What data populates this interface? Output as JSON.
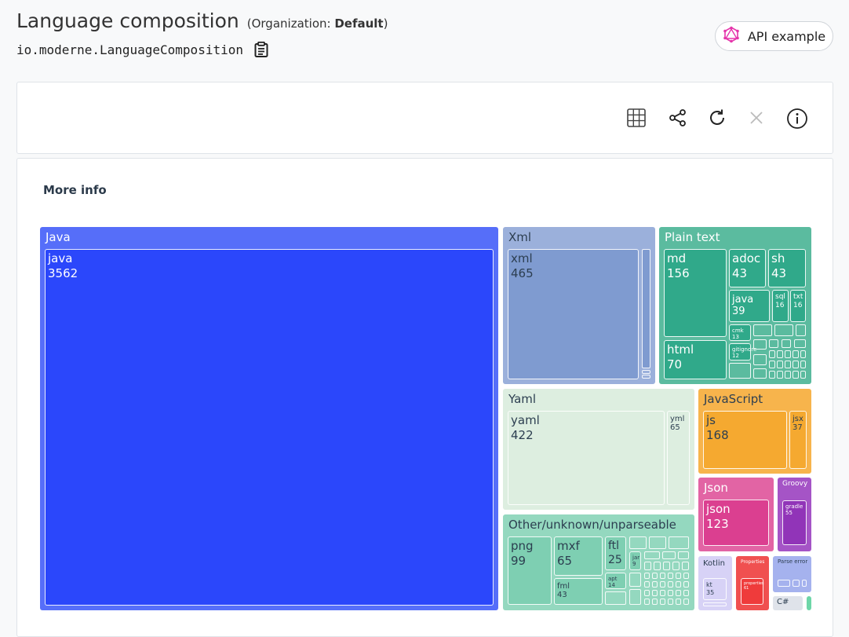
{
  "header": {
    "title": "Language composition",
    "org_prefix": "(Organization: ",
    "org_name": "Default",
    "org_suffix": ")",
    "recipe_id": "io.moderne.LanguageComposition",
    "api_button_label": "API example"
  },
  "toolbar": {
    "icons": [
      "table-icon",
      "share-icon",
      "refresh-icon",
      "close-icon",
      "info-icon"
    ]
  },
  "section": {
    "more_info_label": "More info"
  },
  "colors": {
    "java": "#2b47fb",
    "java_header": "#566ef9",
    "xml": "#7f9bd0",
    "xml_header": "#9bb0db",
    "plain": "#30a98a",
    "plain_header": "#5bbb9f",
    "yaml": "#ddeee0",
    "javascript": "#f5a930",
    "javascript_header": "#f7b44c",
    "json": "#db3f90",
    "json_header": "#e264a4",
    "groovy": "#9134b8",
    "groovy_header": "#a554c6",
    "other": "#7ecfb2",
    "other_header": "#94d8bf",
    "kotlin": "#d7d2f6",
    "properties": "#ef3b3b",
    "parse_error": "#a5b2ee"
  },
  "chart_data": {
    "type": "treemap",
    "groups": [
      {
        "name": "Java",
        "children": [
          {
            "name": "java",
            "value": 3562
          }
        ]
      },
      {
        "name": "Xml",
        "children": [
          {
            "name": "xml",
            "value": 465
          }
        ]
      },
      {
        "name": "Plain text",
        "children": [
          {
            "name": "md",
            "value": 156
          },
          {
            "name": "adoc",
            "value": 43
          },
          {
            "name": "sh",
            "value": 43
          },
          {
            "name": "java",
            "value": 39
          },
          {
            "name": "sql",
            "value": 16
          },
          {
            "name": "txt",
            "value": 16
          },
          {
            "name": "html",
            "value": 70
          },
          {
            "name": "cmk",
            "value": 13
          },
          {
            "name": "gitignore",
            "value": 12
          }
        ]
      },
      {
        "name": "Yaml",
        "children": [
          {
            "name": "yaml",
            "value": 422
          },
          {
            "name": "yml",
            "value": 65
          }
        ]
      },
      {
        "name": "JavaScript",
        "children": [
          {
            "name": "js",
            "value": 168
          },
          {
            "name": "jsx",
            "value": 37
          }
        ]
      },
      {
        "name": "Json",
        "children": [
          {
            "name": "json",
            "value": 123
          }
        ]
      },
      {
        "name": "Groovy",
        "children": [
          {
            "name": "gradle",
            "value": 55
          }
        ]
      },
      {
        "name": "Other/unknown/unparseable",
        "children": [
          {
            "name": "png",
            "value": 99
          },
          {
            "name": "mxf",
            "value": 65
          },
          {
            "name": "ftl",
            "value": 25
          },
          {
            "name": "fml",
            "value": 43
          },
          {
            "name": "jar",
            "value": 9
          },
          {
            "name": "apt",
            "value": 14
          }
        ]
      },
      {
        "name": "Kotlin",
        "children": [
          {
            "name": "kt",
            "value": 35
          }
        ]
      },
      {
        "name": "Properties",
        "children": [
          {
            "name": "properties",
            "value": 61
          }
        ]
      },
      {
        "name": "Parse error",
        "children": []
      },
      {
        "name": "C#",
        "children": []
      }
    ]
  }
}
